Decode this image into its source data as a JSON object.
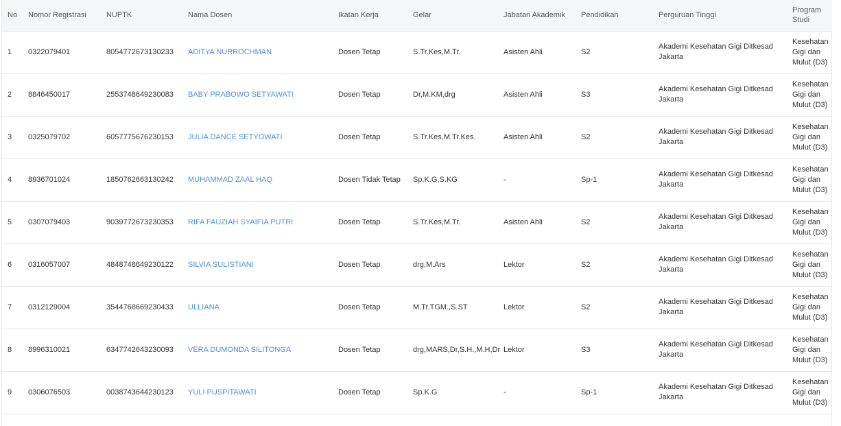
{
  "table": {
    "header": [
      "No",
      "Nomor Registrasi",
      "NUPTK",
      "Nama Dosen",
      "Ikatan Kerja",
      "Gelar",
      "Jabatan Akademik",
      "Pendidikan",
      "Perguruan Tinggi",
      "Program Studi"
    ],
    "rows": [
      [
        "1",
        "0322079401",
        "8054772673130233",
        "ADITYA NURROCHMAN",
        "Dosen Tetap",
        "S.Tr.Kes,M.Tr.",
        "Asisten Ahli",
        "S2",
        "Akademi Kesehatan Gigi Ditkesad Jakarta",
        "Kesehatan Gigi dan Mulut (D3)"
      ],
      [
        "2",
        "8846450017",
        "2553748649230083",
        "BABY PRABOWO SETYAWATI",
        "Dosen Tetap",
        "Dr,M.KM,drg",
        "Asisten Ahli",
        "S3",
        "Akademi Kesehatan Gigi Ditkesad Jakarta",
        "Kesehatan Gigi dan Mulut (D3)"
      ],
      [
        "3",
        "0325079702",
        "6057775676230153",
        "JULIA DANCE SETYOWATI",
        "Dosen Tetap",
        "S.Tr.Kes,M.Tr.Kes.",
        "Asisten Ahli",
        "S2",
        "Akademi Kesehatan Gigi Ditkesad Jakarta",
        "Kesehatan Gigi dan Mulut (D3)"
      ],
      [
        "4",
        "8936701024",
        "1850762663130242",
        "MUHAMMAD ZAAL HAQ",
        "Dosen Tidak Tetap",
        "Sp.K.G,S.KG",
        "-",
        "Sp-1",
        "Akademi Kesehatan Gigi Ditkesad Jakarta",
        "Kesehatan Gigi dan Mulut (D3)"
      ],
      [
        "5",
        "0307079403",
        "9039772673230353",
        "RIFA FAUZIAH SYAIFIA PUTRI",
        "Dosen Tetap",
        "S.Tr.Kes,M.Tr.",
        "Asisten Ahli",
        "S2",
        "Akademi Kesehatan Gigi Ditkesad Jakarta",
        "Kesehatan Gigi dan Mulut (D3)"
      ],
      [
        "6",
        "0316057007",
        "4848748649230122",
        "SILVIA SULISTIANI",
        "Dosen Tetap",
        "drg,M.Ars",
        "Lektor",
        "S2",
        "Akademi Kesehatan Gigi Ditkesad Jakarta",
        "Kesehatan Gigi dan Mulut (D3)"
      ],
      [
        "7",
        "0312129004",
        "3544768669230433",
        "ULLIANA",
        "Dosen Tetap",
        "M.Tr.TGM.,S.ST",
        "Lektor",
        "S2",
        "Akademi Kesehatan Gigi Ditkesad Jakarta",
        "Kesehatan Gigi dan Mulut (D3)"
      ],
      [
        "8",
        "8996310021",
        "6347742643230093",
        "VERA DUMONDA SILITONGA",
        "Dosen Tetap",
        "drg,MARS,Dr,S.H.,M.H,Dr",
        "Lektor",
        "S3",
        "Akademi Kesehatan Gigi Ditkesad Jakarta",
        "Kesehatan Gigi dan Mulut (D3)"
      ],
      [
        "9",
        "0306076503",
        "0038743644230123",
        "YULI PUSPITAWATI",
        "Dosen Tetap",
        "Sp.K.G",
        "-",
        "Sp-1",
        "Akademi Kesehatan Gigi Ditkesad Jakarta",
        "Kesehatan Gigi dan Mulut (D3)"
      ]
    ]
  }
}
